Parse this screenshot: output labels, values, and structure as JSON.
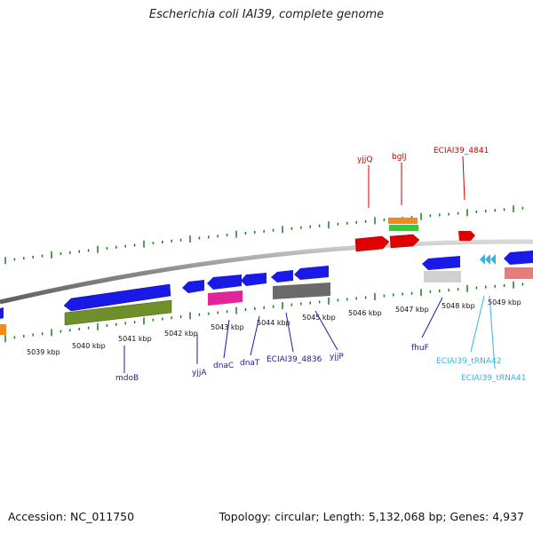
{
  "title": "Escherichia coli IAI39, complete genome",
  "footer": {
    "accession": "Accession: NC_011750",
    "summary": "Topology: circular; Length: 5,132,068 bp; Genes: 4,937"
  },
  "colors": {
    "backbone": "#8a8a8a",
    "tick": "#1e7a1e",
    "label_top": "#cc0000",
    "label_bottom": "#1a1aa6",
    "label_trna": "#33b5e5"
  },
  "scale_ticks": [
    "5039 kbp",
    "5040 kbp",
    "5041 kbp",
    "5042 kbp",
    "5043 kbp",
    "5044 kbp",
    "5045 kbp",
    "5046 kbp",
    "5047 kbp",
    "5048 kbp",
    "5049 kbp"
  ],
  "genes_top": [
    {
      "label": "yjjQ",
      "color": "red"
    },
    {
      "label": "bglJ",
      "color": "red"
    },
    {
      "label": "ECIAI39_4841",
      "color": "red"
    }
  ],
  "genes_bottom": [
    {
      "label": "mdoB"
    },
    {
      "label": "yjjA"
    },
    {
      "label": "dnaC"
    },
    {
      "label": "dnaT"
    },
    {
      "label": "ECIAI39_4836"
    },
    {
      "label": "yjjP"
    },
    {
      "label": "fhuF"
    },
    {
      "label": "ECIAI39_tRNA42"
    },
    {
      "label": "ECIAI39_tRNA41"
    }
  ]
}
